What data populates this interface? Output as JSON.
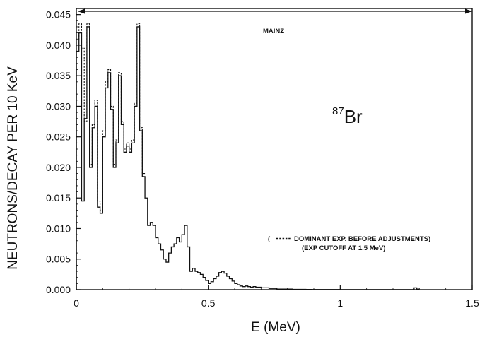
{
  "chart_data": {
    "type": "line",
    "title": "",
    "xlabel": "E  (MeV)",
    "ylabel": "NEUTRONS/DECAY PER 10 KeV",
    "xlim": [
      0,
      1.5
    ],
    "ylim": [
      0,
      0.046
    ],
    "x_ticks": [
      0,
      0.5,
      1,
      1.5
    ],
    "x_tick_labels": [
      "0",
      "0.5",
      "1",
      "1.5"
    ],
    "y_ticks": [
      0,
      0.005,
      0.01,
      0.015,
      0.02,
      0.025,
      0.03,
      0.035,
      0.04,
      0.045
    ],
    "y_tick_labels": [
      "0.000",
      "0.005",
      "0.010",
      "0.015",
      "0.020",
      "0.025",
      "0.030",
      "0.035",
      "0.040",
      "0.045"
    ],
    "grid": false,
    "series": [
      {
        "name": "Mainz",
        "style": "solid-step",
        "bin_width": 0.01,
        "x_start": 0.0,
        "values": [
          0.039,
          0.042,
          0.0145,
          0.028,
          0.043,
          0.02,
          0.0265,
          0.03,
          0.0135,
          0.0125,
          0.025,
          0.033,
          0.0355,
          0.0295,
          0.02,
          0.024,
          0.035,
          0.027,
          0.0225,
          0.0235,
          0.0225,
          0.024,
          0.03,
          0.043,
          0.026,
          0.0185,
          0.015,
          0.0105,
          0.011,
          0.0105,
          0.0085,
          0.0075,
          0.0065,
          0.005,
          0.0045,
          0.006,
          0.007,
          0.0075,
          0.0085,
          0.0078,
          0.009,
          0.0105,
          0.007,
          0.003,
          0.0035,
          0.003,
          0.0028,
          0.0025,
          0.002,
          0.0015,
          0.001,
          0.0013,
          0.0018,
          0.0022,
          0.0028,
          0.003,
          0.0027,
          0.0022,
          0.0018,
          0.0014,
          0.001,
          0.0008,
          0.0006,
          0.0005,
          0.0006,
          0.0005,
          0.0004,
          0.0005,
          0.0004,
          0.0004,
          0.0003,
          0.0003,
          0.0003,
          0.0002,
          0.0002,
          0.0002,
          0.0001,
          0.0001,
          0.0001,
          0.0001,
          0.0001,
          0.0001,
          5e-05,
          5e-05,
          5e-05,
          5e-05,
          5e-05,
          4e-05,
          4e-05,
          3e-05,
          3e-05,
          3e-05,
          2e-05,
          2e-05,
          2e-05,
          2e-05,
          2e-05,
          2e-05,
          2e-05,
          2e-05,
          1e-05,
          1e-05,
          1e-05,
          1e-05,
          1e-05,
          1e-05,
          1e-05,
          1e-05,
          1e-05,
          1e-05,
          1e-05,
          1e-05,
          1e-05,
          1e-05,
          1e-05,
          1e-05,
          1e-05,
          1e-05,
          1e-05,
          1e-05,
          1e-05,
          1e-05,
          1e-05,
          1e-05,
          1e-05,
          1e-05,
          1e-05,
          1e-05,
          0.0003,
          0.0001
        ]
      },
      {
        "name": "DOMINANT EXP. BEFORE ADJUSTMENTS",
        "style": "dashed-step",
        "bin_width": 0.01,
        "x_start": 0.0,
        "values": [
          0.041,
          0.0435,
          0.0395,
          0.0275,
          0.0435,
          0.0205,
          0.027,
          0.031,
          0.0145,
          0.013,
          0.026,
          0.034,
          0.036,
          0.03,
          0.0205,
          0.0245,
          0.0355,
          0.0275,
          0.023,
          0.024,
          0.023,
          0.0245,
          0.0305,
          0.0435,
          0.0265,
          0.019
        ]
      }
    ],
    "annotations": {
      "facility": "MAINZ",
      "isotope_mass": "87",
      "isotope_symbol": "Br",
      "legend_line1": "DOMINANT EXP. BEFORE ADJUSTMENTS)",
      "legend_open": "(",
      "legend_line2": "(EXP CUTOFF AT 1.5 MeV)"
    }
  }
}
